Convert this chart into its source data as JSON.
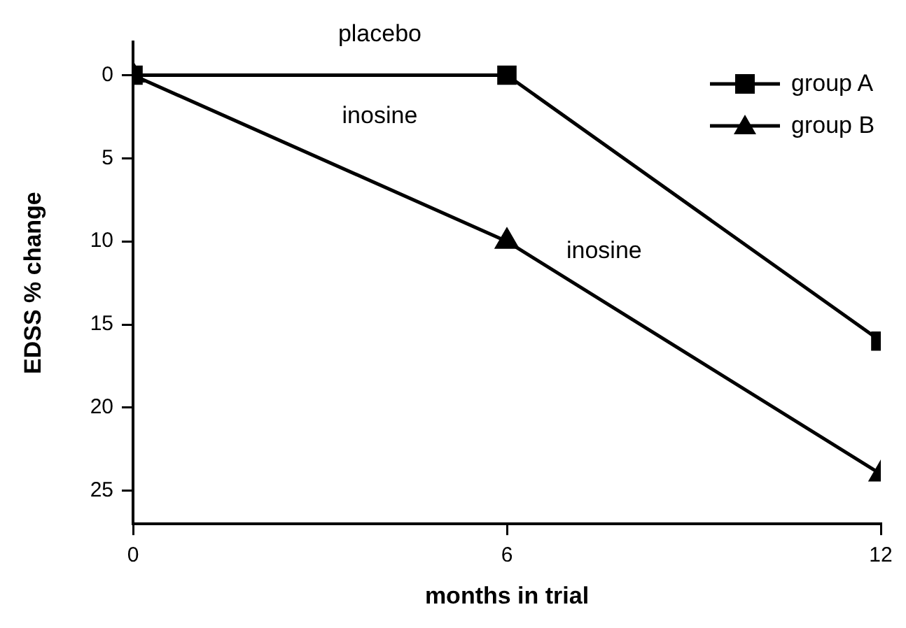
{
  "chart_data": {
    "type": "line",
    "xlabel": "months in trial",
    "ylabel": "EDSS % change",
    "x": [
      0,
      6,
      12
    ],
    "series": [
      {
        "name": "group A",
        "color": "#000000",
        "marker": "square",
        "values": [
          0,
          0,
          16
        ]
      },
      {
        "name": "group B",
        "color": "#000000",
        "marker": "triangle",
        "values": [
          0,
          10,
          24
        ]
      }
    ],
    "xlim": [
      0,
      12
    ],
    "xticks": [
      0,
      6,
      12
    ],
    "ylim": [
      27,
      -2
    ],
    "yticks": [
      0,
      5,
      10,
      15,
      20,
      25
    ],
    "grid": false,
    "legend": "top right",
    "line_style": "solid",
    "annotations": [
      "placebo",
      "inosine",
      "inosine"
    ]
  }
}
